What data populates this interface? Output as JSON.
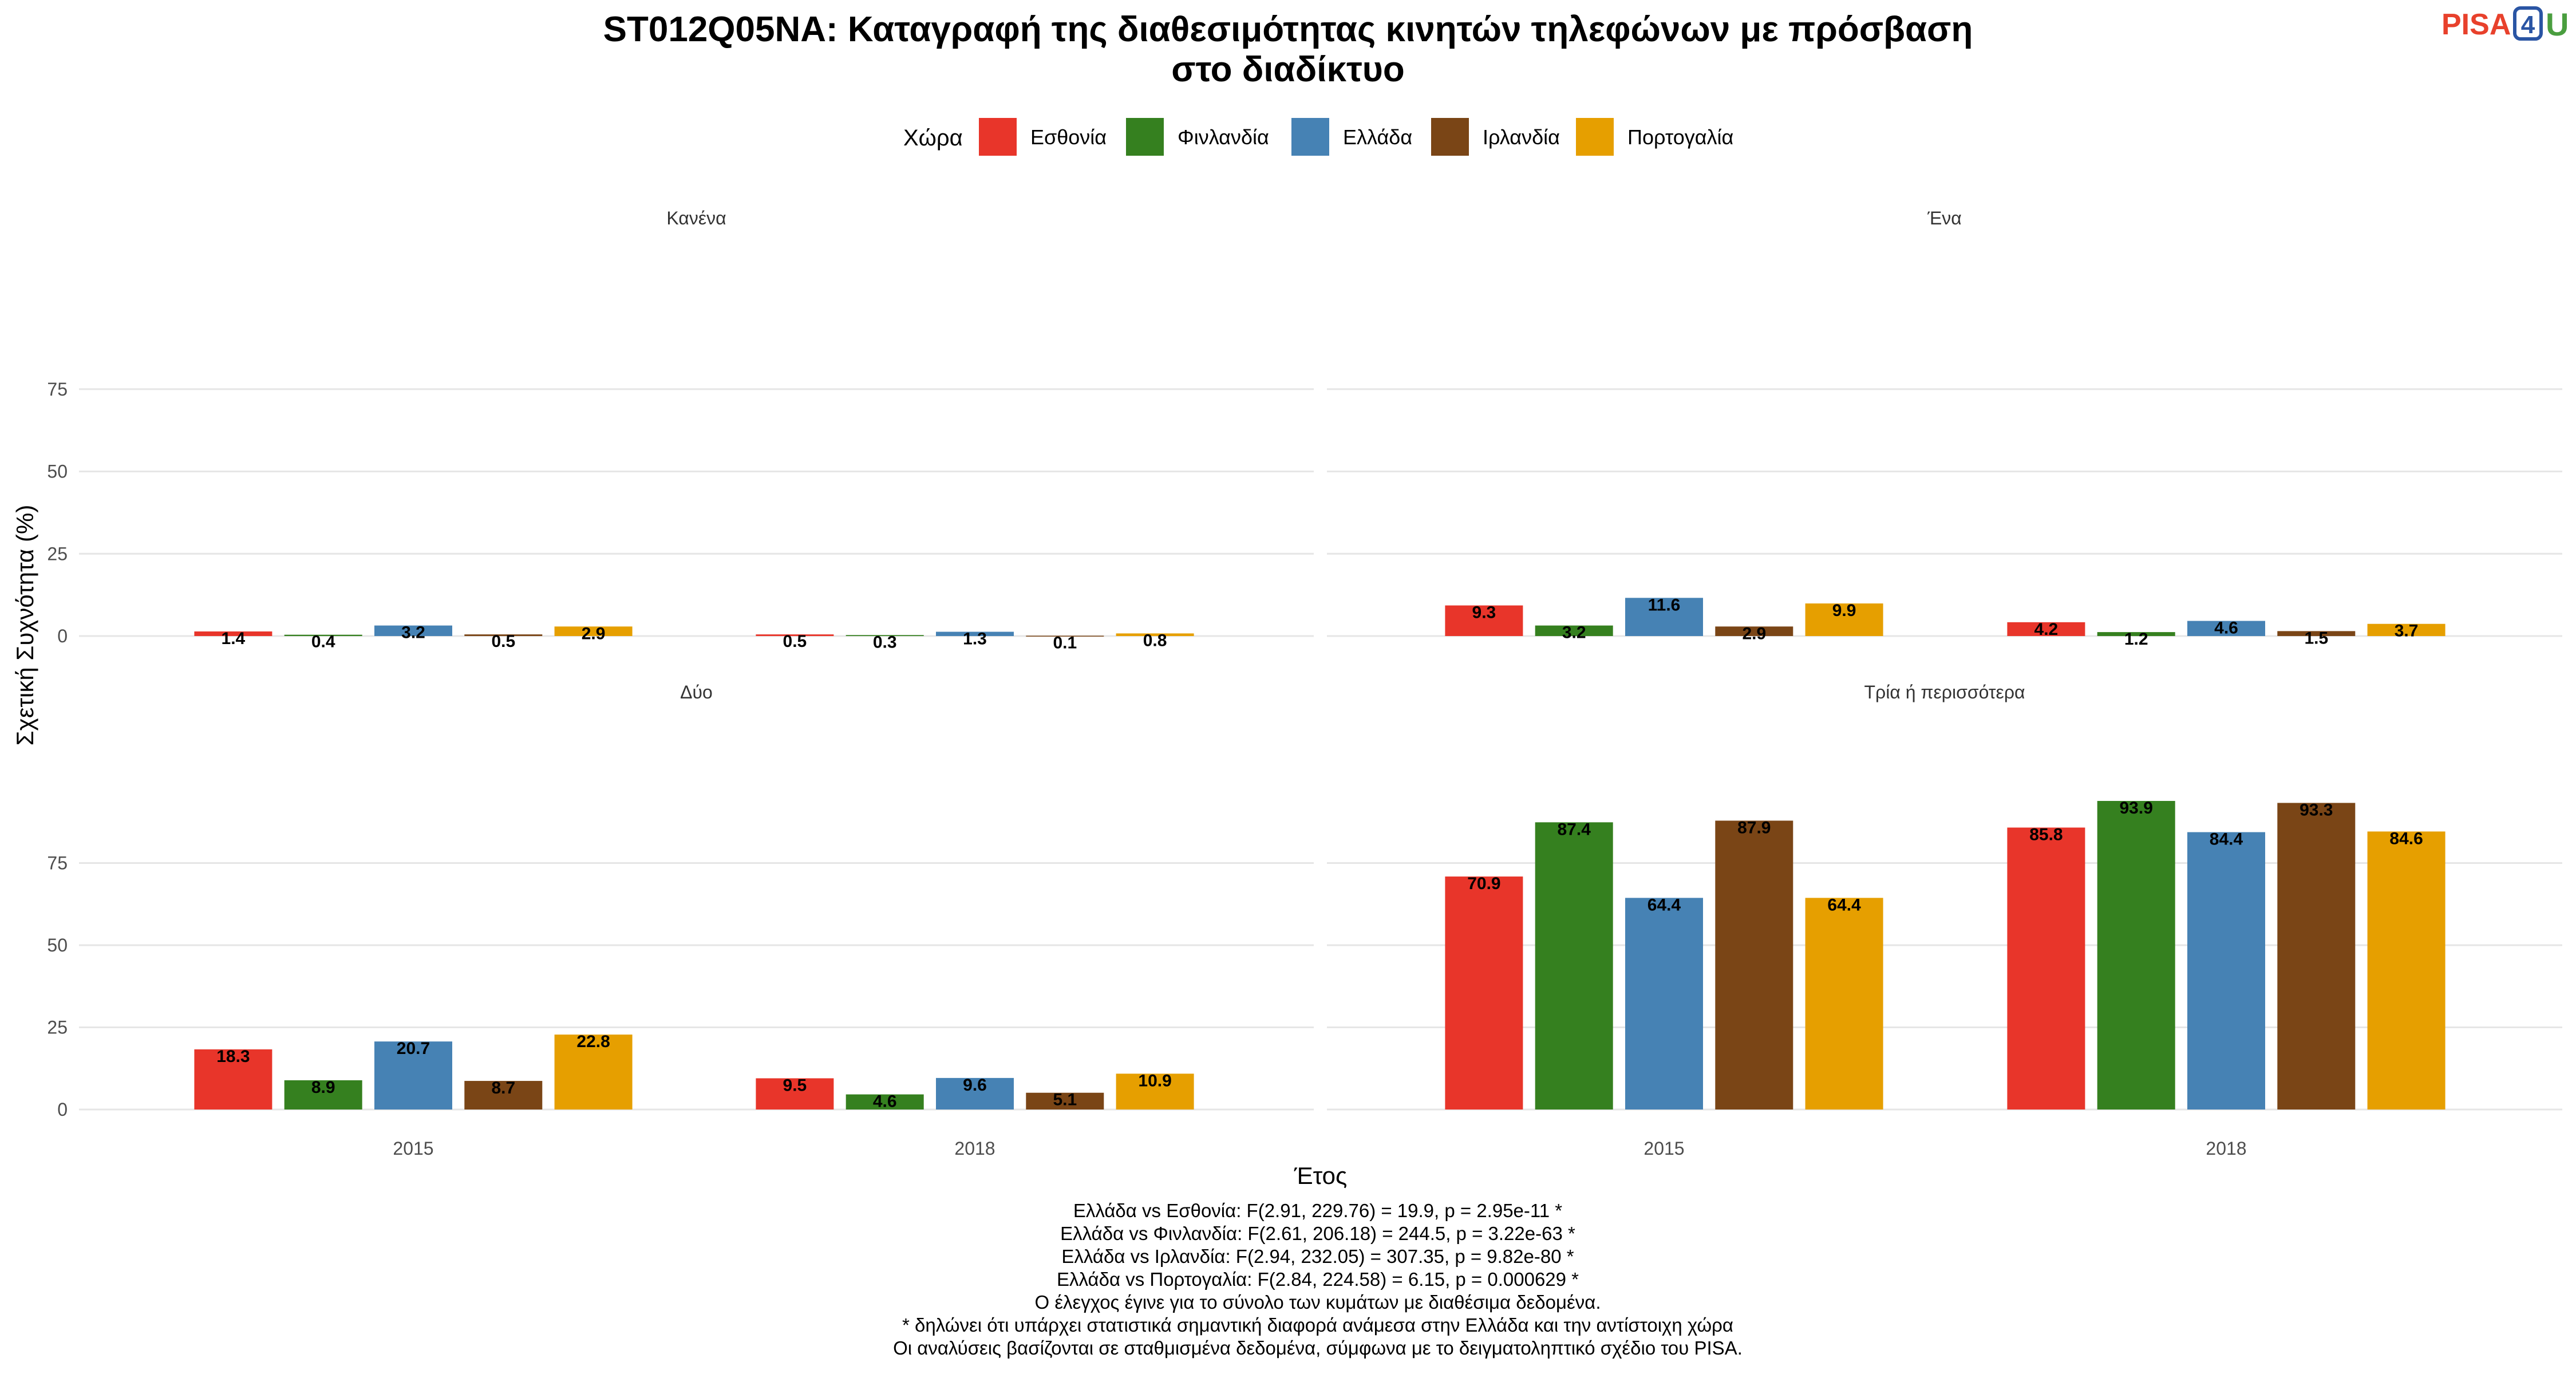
{
  "logo": {
    "pisa": "PISA",
    "four": "4",
    "u": "U"
  },
  "chart_data": {
    "type": "bar",
    "title_lines": [
      "ST012Q05NA: Καταγραφή της διαθεσιμότητας κινητών τηλεφώνων με πρόσβαση",
      "στο διαδίκτυο"
    ],
    "legend_title": "Χώρα",
    "legend_placement": "top",
    "xlabel": "Έτος",
    "ylabel": "Σχετική Συχνότητα (%)",
    "ylim": [
      0,
      100
    ],
    "yticks": [
      0,
      25,
      50,
      75
    ],
    "grid": true,
    "categories": [
      "2015",
      "2018"
    ],
    "series": [
      {
        "name": "Εσθονία",
        "color": "#e8352a"
      },
      {
        "name": "Φινλανδία",
        "color": "#35801f"
      },
      {
        "name": "Ελλάδα",
        "color": "#4682b4"
      },
      {
        "name": "Ιρλανδία",
        "color": "#7a4516"
      },
      {
        "name": "Πορτογαλία",
        "color": "#e69f00"
      }
    ],
    "facets": [
      {
        "title": "Κανένα",
        "values": [
          [
            1.4,
            0.4,
            3.2,
            0.5,
            2.9
          ],
          [
            0.5,
            0.3,
            1.3,
            0.1,
            0.8
          ]
        ],
        "labels": [
          [
            "1.4",
            "0.4",
            "3.2",
            "0.5",
            "2.9"
          ],
          [
            "0.5",
            "0.3",
            "1.3",
            "0.1",
            "0.8"
          ]
        ]
      },
      {
        "title": "Ένα",
        "values": [
          [
            9.3,
            3.2,
            11.6,
            2.9,
            9.9
          ],
          [
            4.2,
            1.2,
            4.6,
            1.5,
            3.7
          ]
        ],
        "labels": [
          [
            "9.3",
            "3.2",
            "11.6",
            "2.9",
            "9.9"
          ],
          [
            "4.2",
            "1.2",
            "4.6",
            "1.5",
            "3.7"
          ]
        ]
      },
      {
        "title": "Δύο",
        "values": [
          [
            18.3,
            8.9,
            20.7,
            8.7,
            22.8
          ],
          [
            9.5,
            4.6,
            9.6,
            5.1,
            10.9
          ]
        ],
        "labels": [
          [
            "18.3",
            "8.9",
            "20.7",
            "8.7",
            "22.8"
          ],
          [
            "9.5",
            "4.6",
            "9.6",
            "5.1",
            "10.9"
          ]
        ]
      },
      {
        "title": "Τρία ή περισσότερα",
        "values": [
          [
            70.9,
            87.4,
            64.4,
            87.9,
            64.4
          ],
          [
            85.8,
            93.9,
            84.4,
            93.3,
            84.6
          ]
        ],
        "labels": [
          [
            "70.9",
            "87.4",
            "64.4",
            "87.9",
            "64.4"
          ],
          [
            "85.8",
            "93.9",
            "84.4",
            "93.3",
            "84.6"
          ]
        ]
      }
    ],
    "notes": [
      "Ελλάδα vs Εσθονία: F(2.91, 229.76) = 19.9, p = 2.95e-11 *",
      "Ελλάδα vs Φινλανδία: F(2.61, 206.18) = 244.5, p = 3.22e-63 *",
      "Ελλάδα vs Ιρλανδία: F(2.94, 232.05) = 307.35, p = 9.82e-80 *",
      "Ελλάδα vs Πορτογαλία: F(2.84, 224.58) = 6.15, p = 0.000629 *",
      "Ο έλεγχος έγινε για το σύνολο των κυμάτων με διαθέσιμα δεδομένα.",
      "* δηλώνει ότι υπάρχει στατιστικά σημαντική διαφορά ανάμεσα στην Ελλάδα και την αντίστοιχη χώρα",
      "Οι αναλύσεις βασίζονται σε σταθμισμένα δεδομένα, σύμφωνα με το δειγματοληπτικό σχέδιο του PISA."
    ]
  }
}
